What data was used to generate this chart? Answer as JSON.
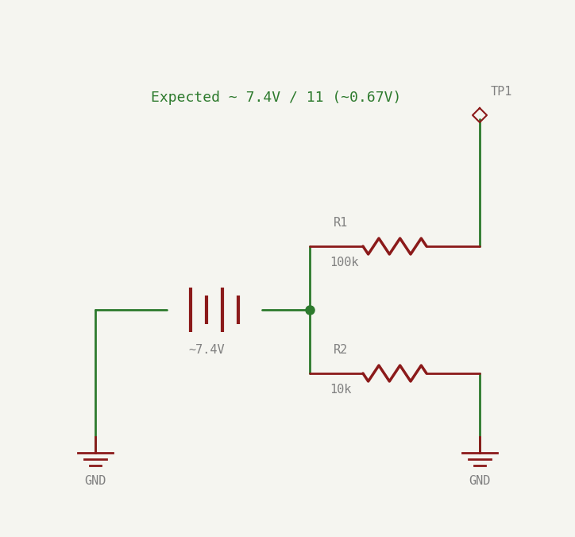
{
  "bg_color": "#f5f5f0",
  "wire_color": "#2d7a2d",
  "component_color": "#8b1a1a",
  "label_color": "#808080",
  "annotation_color": "#2d7a2d",
  "title_text": "Expected ~ 7.4V / 11 (~0.67V)",
  "battery_label": "~7.4V",
  "r1_label": "R1",
  "r1_value": "100k",
  "r2_label": "R2",
  "r2_value": "10k",
  "tp1_label": "TP1",
  "gnd_label": "GND",
  "figsize": [
    7.24,
    6.76
  ],
  "dpi": 100
}
